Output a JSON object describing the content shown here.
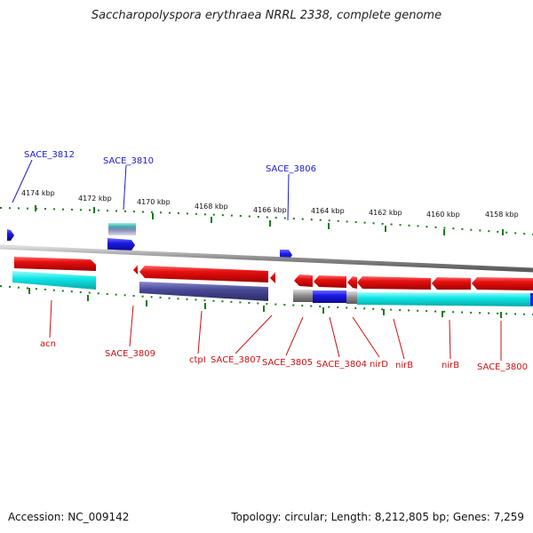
{
  "title": "Saccharopolyspora erythraea NRRL 2338, complete genome",
  "accession": "Accession: NC_009142",
  "summary": "Topology: circular; Length: 8,212,805 bp; Genes: 7,259",
  "scale_labels": [
    "4174 kbp",
    "4172 kbp",
    "4170 kbp",
    "4168 kbp",
    "4166 kbp",
    "4164 kbp",
    "4162 kbp",
    "4160 kbp",
    "4158 kbp"
  ],
  "top_gene_labels": [
    "SACE_3812",
    "SACE_3810",
    "SACE_3806"
  ],
  "bottom_gene_labels": [
    "acn",
    "SACE_3809",
    "ctpI",
    "SACE_3807",
    "SACE_3805",
    "SACE_3804",
    "nirD",
    "nirB",
    "nirB",
    "SACE_3800"
  ],
  "colors": {
    "red_gene": "#e81010",
    "blue_gene": "#1a1ae6",
    "cyan_gene": "#10e6e6",
    "purple_gene": "#4a4a9a",
    "gray_axis": "#888888",
    "tick_green": "#1a7a1a",
    "top_label": "#1a1acc",
    "bottom_label": "#cc1111"
  }
}
